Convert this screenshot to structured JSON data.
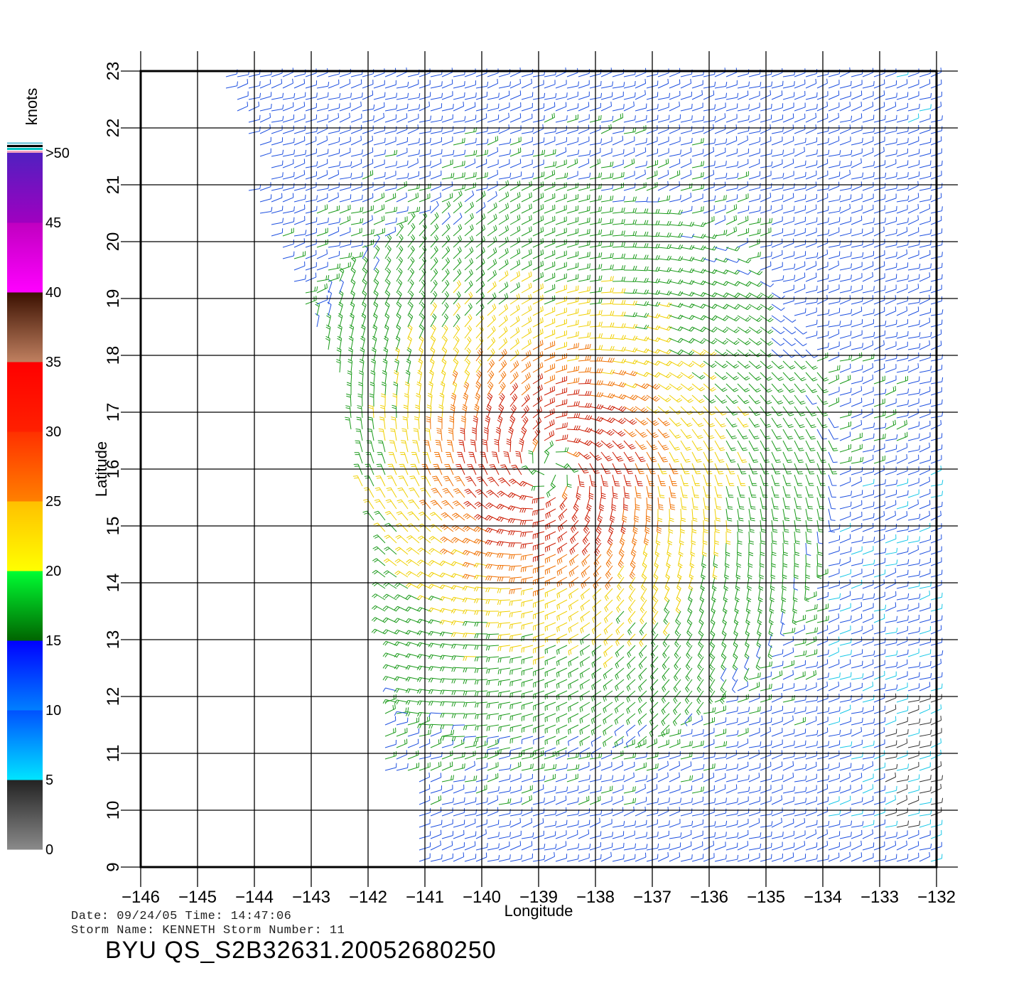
{
  "plot": {
    "xlabel": "Longitude",
    "ylabel": "Latitude",
    "x_ticks": [
      "-146",
      "-145",
      "-144",
      "-143",
      "-142",
      "-141",
      "-140",
      "-139",
      "-138",
      "-137",
      "-136",
      "-135",
      "-134",
      "-133",
      "-132"
    ],
    "y_ticks": [
      "9",
      "10",
      "11",
      "12",
      "13",
      "14",
      "15",
      "16",
      "17",
      "18",
      "19",
      "20",
      "21",
      "22",
      "23"
    ],
    "lon_range": [
      -146,
      -132
    ],
    "lat_range": [
      9,
      23
    ],
    "grid": true
  },
  "colorbar": {
    "unit": "knots",
    "labels": [
      "0",
      "5",
      "10",
      "15",
      "20",
      "25",
      "30",
      "35",
      "40",
      "45",
      ">50"
    ],
    "bands": [
      {
        "from": 0,
        "to": 5,
        "colors": [
          "#8a8a8a",
          "#222222"
        ]
      },
      {
        "from": 5,
        "to": 10,
        "colors": [
          "#00e5ff",
          "#0050ff"
        ]
      },
      {
        "from": 10,
        "to": 15,
        "colors": [
          "#0080ff",
          "#0000ff"
        ]
      },
      {
        "from": 15,
        "to": 20,
        "colors": [
          "#006400",
          "#00ff33"
        ]
      },
      {
        "from": 20,
        "to": 25,
        "colors": [
          "#ffff00",
          "#ffc000"
        ]
      },
      {
        "from": 25,
        "to": 30,
        "colors": [
          "#ff8000",
          "#ff3000"
        ]
      },
      {
        "from": 30,
        "to": 35,
        "colors": [
          "#ff2000",
          "#ff0000"
        ]
      },
      {
        "from": 35,
        "to": 40,
        "colors": [
          "#c08060",
          "#3a1000"
        ]
      },
      {
        "from": 40,
        "to": 45,
        "colors": [
          "#ff00ff",
          "#c000c0"
        ]
      },
      {
        "from": 45,
        "to": 50,
        "colors": [
          "#a000c0",
          "#5020c0"
        ]
      }
    ]
  },
  "info": {
    "date_line": "Date: 09/24/05   Time: 14:47:06",
    "storm_line": "Storm Name: KENNETH   Storm Number: 11",
    "product_id": "BYU QS_S2B32631.20052680250"
  },
  "storm": {
    "name": "KENNETH",
    "center_lon": -138.8,
    "center_lat": 16.0,
    "max_speed_knots": 34
  },
  "speed_colors": {
    "calm": "#333333",
    "light": "#18c8e8",
    "moderate": "#1e50e0",
    "fresh": "#1a9a1a",
    "strong": "#f0d000",
    "gale": "#f07000",
    "storm": "#cc1a00"
  }
}
